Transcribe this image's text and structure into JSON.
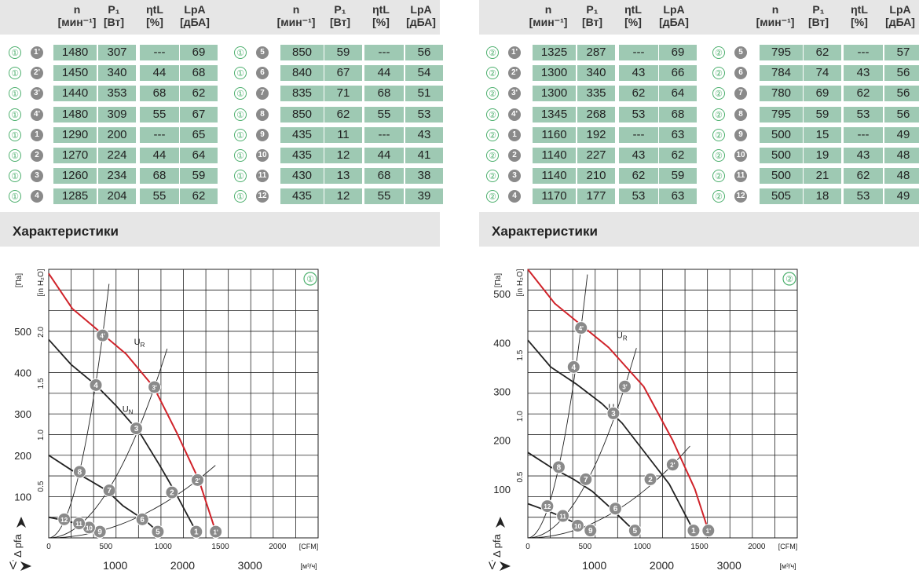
{
  "headers": {
    "n": {
      "label": "n",
      "unit": "[мин⁻¹]"
    },
    "p1": {
      "label": "P₁",
      "unit": "[Вт]"
    },
    "eta": {
      "label": "ηtL",
      "unit": "[%]"
    },
    "lpa": {
      "label": "LpA",
      "unit": "[дБА]"
    }
  },
  "section_title": "Характеристики",
  "left": {
    "curve_id": "①",
    "table_a": [
      {
        "curve": "①",
        "point": "1'",
        "n": "1480",
        "p1": "307",
        "eta": "---",
        "lpa": "69"
      },
      {
        "curve": "①",
        "point": "2'",
        "n": "1450",
        "p1": "340",
        "eta": "44",
        "lpa": "68"
      },
      {
        "curve": "①",
        "point": "3'",
        "n": "1440",
        "p1": "353",
        "eta": "68",
        "lpa": "62"
      },
      {
        "curve": "①",
        "point": "4'",
        "n": "1480",
        "p1": "309",
        "eta": "55",
        "lpa": "67"
      },
      {
        "curve": "①",
        "point": "1",
        "n": "1290",
        "p1": "200",
        "eta": "---",
        "lpa": "65"
      },
      {
        "curve": "①",
        "point": "2",
        "n": "1270",
        "p1": "224",
        "eta": "44",
        "lpa": "64"
      },
      {
        "curve": "①",
        "point": "3",
        "n": "1260",
        "p1": "234",
        "eta": "68",
        "lpa": "59"
      },
      {
        "curve": "①",
        "point": "4",
        "n": "1285",
        "p1": "204",
        "eta": "55",
        "lpa": "62"
      }
    ],
    "table_b": [
      {
        "curve": "①",
        "point": "5",
        "n": "850",
        "p1": "59",
        "eta": "---",
        "lpa": "56"
      },
      {
        "curve": "①",
        "point": "6",
        "n": "840",
        "p1": "67",
        "eta": "44",
        "lpa": "54"
      },
      {
        "curve": "①",
        "point": "7",
        "n": "835",
        "p1": "71",
        "eta": "68",
        "lpa": "51"
      },
      {
        "curve": "①",
        "point": "8",
        "n": "850",
        "p1": "62",
        "eta": "55",
        "lpa": "53"
      },
      {
        "curve": "①",
        "point": "9",
        "n": "435",
        "p1": "11",
        "eta": "---",
        "lpa": "43"
      },
      {
        "curve": "①",
        "point": "10",
        "n": "435",
        "p1": "12",
        "eta": "44",
        "lpa": "41"
      },
      {
        "curve": "①",
        "point": "11",
        "n": "430",
        "p1": "13",
        "eta": "68",
        "lpa": "38"
      },
      {
        "curve": "①",
        "point": "12",
        "n": "435",
        "p1": "12",
        "eta": "55",
        "lpa": "39"
      }
    ]
  },
  "right": {
    "curve_id": "②",
    "table_a": [
      {
        "curve": "②",
        "point": "1'",
        "n": "1325",
        "p1": "287",
        "eta": "---",
        "lpa": "69"
      },
      {
        "curve": "②",
        "point": "2'",
        "n": "1300",
        "p1": "340",
        "eta": "43",
        "lpa": "66"
      },
      {
        "curve": "②",
        "point": "3'",
        "n": "1300",
        "p1": "335",
        "eta": "62",
        "lpa": "64"
      },
      {
        "curve": "②",
        "point": "4'",
        "n": "1345",
        "p1": "268",
        "eta": "53",
        "lpa": "68"
      },
      {
        "curve": "②",
        "point": "1",
        "n": "1160",
        "p1": "192",
        "eta": "---",
        "lpa": "63"
      },
      {
        "curve": "②",
        "point": "2",
        "n": "1140",
        "p1": "227",
        "eta": "43",
        "lpa": "62"
      },
      {
        "curve": "②",
        "point": "3",
        "n": "1140",
        "p1": "210",
        "eta": "62",
        "lpa": "59"
      },
      {
        "curve": "②",
        "point": "4",
        "n": "1170",
        "p1": "177",
        "eta": "53",
        "lpa": "63"
      }
    ],
    "table_b": [
      {
        "curve": "②",
        "point": "5",
        "n": "795",
        "p1": "62",
        "eta": "---",
        "lpa": "57"
      },
      {
        "curve": "②",
        "point": "6",
        "n": "784",
        "p1": "74",
        "eta": "43",
        "lpa": "56"
      },
      {
        "curve": "②",
        "point": "7",
        "n": "780",
        "p1": "69",
        "eta": "62",
        "lpa": "56"
      },
      {
        "curve": "②",
        "point": "8",
        "n": "795",
        "p1": "59",
        "eta": "53",
        "lpa": "56"
      },
      {
        "curve": "②",
        "point": "9",
        "n": "500",
        "p1": "15",
        "eta": "---",
        "lpa": "49"
      },
      {
        "curve": "②",
        "point": "10",
        "n": "500",
        "p1": "19",
        "eta": "43",
        "lpa": "48"
      },
      {
        "curve": "②",
        "point": "11",
        "n": "500",
        "p1": "21",
        "eta": "62",
        "lpa": "48"
      },
      {
        "curve": "②",
        "point": "12",
        "n": "505",
        "p1": "18",
        "eta": "53",
        "lpa": "49"
      }
    ]
  },
  "chart_data": [
    {
      "type": "line",
      "curve_id": "①",
      "x_unit": "м³/ч",
      "x_ticks": [
        1000,
        2000,
        3000
      ],
      "x2_unit": "CFM",
      "x2_ticks": [
        0,
        500,
        1000,
        1500,
        2000
      ],
      "y_unit": "Па",
      "y_ticks": [
        100,
        200,
        300,
        400,
        500
      ],
      "y2_unit": "in H₂O",
      "y2_ticks": [
        "0.5",
        "1.0",
        "1.5",
        "2.0"
      ],
      "xlim": [
        0,
        4000
      ],
      "ylim": [
        0,
        650
      ],
      "grid": true,
      "ylabel": "Δ pfa",
      "xlabel": "V̇",
      "series": [
        {
          "name": "UR",
          "color": "#d0232a",
          "x": [
            0,
            350,
            750,
            1150,
            1560,
            1900,
            2230,
            2480
          ],
          "y": [
            640,
            555,
            500,
            445,
            365,
            255,
            140,
            15
          ]
        },
        {
          "name": "UN",
          "color": "#222222",
          "x": [
            0,
            330,
            700,
            1000,
            1350,
            1650,
            1880,
            2190
          ],
          "y": [
            480,
            420,
            370,
            320,
            255,
            175,
            110,
            15
          ]
        },
        {
          "name": "",
          "color": "#222222",
          "x": [
            0,
            330,
            600,
            860,
            1100,
            1450,
            1620
          ],
          "y": [
            200,
            165,
            140,
            115,
            78,
            40,
            15
          ]
        },
        {
          "name": "",
          "color": "#222222",
          "x": [
            0,
            300,
            540,
            760
          ],
          "y": [
            50,
            40,
            28,
            15
          ]
        }
      ],
      "points": [
        {
          "id": "1'",
          "x": 2480,
          "y": 15
        },
        {
          "id": "2'",
          "x": 2210,
          "y": 140
        },
        {
          "id": "3'",
          "x": 1570,
          "y": 365
        },
        {
          "id": "4'",
          "x": 800,
          "y": 490
        },
        {
          "id": "1",
          "x": 2190,
          "y": 15
        },
        {
          "id": "2",
          "x": 1830,
          "y": 110
        },
        {
          "id": "3",
          "x": 1300,
          "y": 265
        },
        {
          "id": "4",
          "x": 700,
          "y": 370
        },
        {
          "id": "5",
          "x": 1620,
          "y": 15
        },
        {
          "id": "6",
          "x": 1390,
          "y": 45
        },
        {
          "id": "7",
          "x": 900,
          "y": 115
        },
        {
          "id": "8",
          "x": 460,
          "y": 160
        },
        {
          "id": "9",
          "x": 760,
          "y": 15
        },
        {
          "id": "10",
          "x": 600,
          "y": 25
        },
        {
          "id": "11",
          "x": 450,
          "y": 35
        },
        {
          "id": "12",
          "x": 230,
          "y": 45
        }
      ]
    },
    {
      "type": "line",
      "curve_id": "②",
      "x_unit": "м³/ч",
      "x_ticks": [
        1000,
        2000,
        3000
      ],
      "x2_unit": "CFM",
      "x2_ticks": [
        0,
        500,
        1000,
        1500,
        2000
      ],
      "y_unit": "Па",
      "y_ticks": [
        100,
        200,
        300,
        400,
        500
      ],
      "y2_unit": "in H₂O",
      "y2_ticks": [
        "0.5",
        "1.0",
        "1.5"
      ],
      "xlim": [
        0,
        4000
      ],
      "ylim": [
        0,
        550
      ],
      "grid": true,
      "ylabel": "Δ pfa",
      "xlabel": "V̇",
      "series": [
        {
          "name": "UR",
          "color": "#d0232a",
          "x": [
            0,
            400,
            800,
            1200,
            1720,
            2150,
            2480,
            2680
          ],
          "y": [
            550,
            480,
            435,
            390,
            310,
            200,
            100,
            15
          ]
        },
        {
          "name": "UN",
          "color": "#222222",
          "x": [
            0,
            340,
            720,
            1100,
            1400,
            1820,
            2100,
            2460
          ],
          "y": [
            405,
            350,
            315,
            275,
            235,
            160,
            110,
            15
          ]
        },
        {
          "name": "",
          "color": "#222222",
          "x": [
            0,
            340,
            680,
            960,
            1200,
            1500,
            1590
          ],
          "y": [
            175,
            145,
            120,
            95,
            65,
            25,
            15
          ]
        },
        {
          "name": "",
          "color": "#222222",
          "x": [
            0,
            300,
            560,
            930
          ],
          "y": [
            70,
            55,
            40,
            15
          ]
        }
      ],
      "points": [
        {
          "id": "1'",
          "x": 2680,
          "y": 15
        },
        {
          "id": "2'",
          "x": 2150,
          "y": 150
        },
        {
          "id": "3'",
          "x": 1440,
          "y": 310
        },
        {
          "id": "4'",
          "x": 790,
          "y": 430
        },
        {
          "id": "1",
          "x": 2460,
          "y": 15
        },
        {
          "id": "2",
          "x": 1820,
          "y": 120
        },
        {
          "id": "3",
          "x": 1270,
          "y": 255
        },
        {
          "id": "4",
          "x": 680,
          "y": 350
        },
        {
          "id": "5",
          "x": 1590,
          "y": 15
        },
        {
          "id": "6",
          "x": 1300,
          "y": 60
        },
        {
          "id": "7",
          "x": 860,
          "y": 120
        },
        {
          "id": "8",
          "x": 460,
          "y": 145
        },
        {
          "id": "9",
          "x": 930,
          "y": 15
        },
        {
          "id": "10",
          "x": 740,
          "y": 25
        },
        {
          "id": "11",
          "x": 520,
          "y": 45
        },
        {
          "id": "12",
          "x": 290,
          "y": 65
        }
      ]
    }
  ]
}
